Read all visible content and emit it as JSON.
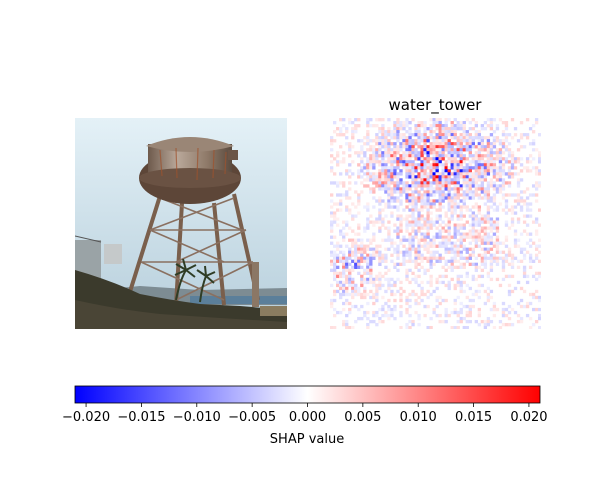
{
  "chart_data": {
    "type": "heatmap",
    "panels": [
      {
        "kind": "image",
        "title": "",
        "subject": "water tower photograph"
      },
      {
        "kind": "shap-heatmap",
        "title": "water_tower"
      }
    ],
    "colorbar": {
      "label": "SHAP value",
      "vmin": -0.021,
      "vmax": 0.021,
      "ticks": [
        -0.02,
        -0.015,
        -0.01,
        -0.005,
        0.0,
        0.005,
        0.01,
        0.015,
        0.02
      ],
      "tick_labels": [
        "−0.020",
        "−0.015",
        "−0.010",
        "−0.005",
        "0.000",
        "0.005",
        "0.010",
        "0.015",
        "0.020"
      ],
      "colors": {
        "negative": "#0000ff",
        "zero": "#ffffff",
        "positive": "#ff0000"
      }
    }
  }
}
